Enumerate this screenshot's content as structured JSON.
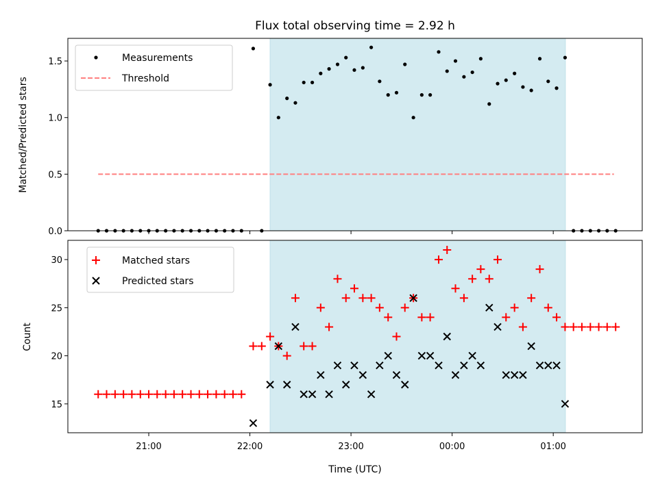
{
  "chart_data": {
    "title": "Flux total observing time = 2.92 h",
    "xlabel": "Time (UTC)",
    "x_tick_labels": [
      "21:00",
      "22:00",
      "23:00",
      "00:00",
      "01:00"
    ],
    "x_tick_hours": [
      21,
      22,
      23,
      24,
      25
    ],
    "x_range_hours": [
      20.2,
      25.88
    ],
    "shaded_region_hours": [
      22.2,
      25.12
    ],
    "shade_color": "#d4ebf1",
    "panels": [
      {
        "type": "scatter",
        "ylabel": "Matched/Predicted stars",
        "ylim": [
          0,
          1.7
        ],
        "yticks": [
          0.0,
          0.5,
          1.0,
          1.5
        ],
        "ytick_labels": [
          "0.0",
          "0.5",
          "1.0",
          "1.5"
        ],
        "legend_position": "top-left",
        "threshold": {
          "name": "Threshold",
          "value": 0.5,
          "x_range_hours": [
            20.5,
            25.6
          ],
          "color": "#ff7f7f"
        },
        "series": [
          {
            "name": "Measurements",
            "marker": "dot",
            "color": "#000000",
            "points": [
              [
                20.5,
                0
              ],
              [
                20.583,
                0
              ],
              [
                20.667,
                0
              ],
              [
                20.75,
                0
              ],
              [
                20.833,
                0
              ],
              [
                20.917,
                0
              ],
              [
                21.0,
                0
              ],
              [
                21.083,
                0
              ],
              [
                21.167,
                0
              ],
              [
                21.25,
                0
              ],
              [
                21.333,
                0
              ],
              [
                21.417,
                0
              ],
              [
                21.5,
                0
              ],
              [
                21.583,
                0
              ],
              [
                21.667,
                0
              ],
              [
                21.75,
                0
              ],
              [
                21.833,
                0
              ],
              [
                21.917,
                0
              ],
              [
                22.033,
                1.61
              ],
              [
                22.117,
                0
              ],
              [
                22.2,
                1.29
              ],
              [
                22.283,
                1.0
              ],
              [
                22.367,
                1.17
              ],
              [
                22.45,
                1.13
              ],
              [
                22.533,
                1.31
              ],
              [
                22.617,
                1.31
              ],
              [
                22.7,
                1.39
              ],
              [
                22.783,
                1.43
              ],
              [
                22.867,
                1.47
              ],
              [
                22.95,
                1.53
              ],
              [
                23.033,
                1.42
              ],
              [
                23.117,
                1.44
              ],
              [
                23.2,
                1.62
              ],
              [
                23.283,
                1.32
              ],
              [
                23.367,
                1.2
              ],
              [
                23.45,
                1.22
              ],
              [
                23.533,
                1.47
              ],
              [
                23.617,
                1.0
              ],
              [
                23.7,
                1.2
              ],
              [
                23.783,
                1.2
              ],
              [
                23.867,
                1.58
              ],
              [
                23.95,
                1.41
              ],
              [
                24.033,
                1.5
              ],
              [
                24.117,
                1.36
              ],
              [
                24.2,
                1.4
              ],
              [
                24.283,
                1.52
              ],
              [
                24.367,
                1.12
              ],
              [
                24.45,
                1.3
              ],
              [
                24.533,
                1.33
              ],
              [
                24.617,
                1.39
              ],
              [
                24.7,
                1.27
              ],
              [
                24.783,
                1.24
              ],
              [
                24.867,
                1.52
              ],
              [
                24.95,
                1.32
              ],
              [
                25.033,
                1.26
              ],
              [
                25.117,
                1.53
              ],
              [
                25.2,
                0
              ],
              [
                25.283,
                0
              ],
              [
                25.367,
                0
              ],
              [
                25.45,
                0
              ],
              [
                25.533,
                0
              ],
              [
                25.617,
                0
              ]
            ]
          }
        ]
      },
      {
        "type": "scatter",
        "ylabel": "Count",
        "ylim": [
          12,
          32
        ],
        "yticks": [
          15,
          20,
          25,
          30
        ],
        "ytick_labels": [
          "15",
          "20",
          "25",
          "30"
        ],
        "legend_position": "top-left",
        "series": [
          {
            "name": "Matched stars",
            "marker": "plus",
            "color": "#ff0000",
            "points": [
              [
                20.5,
                16
              ],
              [
                20.583,
                16
              ],
              [
                20.667,
                16
              ],
              [
                20.75,
                16
              ],
              [
                20.833,
                16
              ],
              [
                20.917,
                16
              ],
              [
                21.0,
                16
              ],
              [
                21.083,
                16
              ],
              [
                21.167,
                16
              ],
              [
                21.25,
                16
              ],
              [
                21.333,
                16
              ],
              [
                21.417,
                16
              ],
              [
                21.5,
                16
              ],
              [
                21.583,
                16
              ],
              [
                21.667,
                16
              ],
              [
                21.75,
                16
              ],
              [
                21.833,
                16
              ],
              [
                21.917,
                16
              ],
              [
                22.033,
                21
              ],
              [
                22.117,
                21
              ],
              [
                22.2,
                22
              ],
              [
                22.283,
                21
              ],
              [
                22.367,
                20
              ],
              [
                22.45,
                26
              ],
              [
                22.533,
                21
              ],
              [
                22.617,
                21
              ],
              [
                22.7,
                25
              ],
              [
                22.783,
                23
              ],
              [
                22.867,
                28
              ],
              [
                22.95,
                26
              ],
              [
                23.033,
                27
              ],
              [
                23.117,
                26
              ],
              [
                23.2,
                26
              ],
              [
                23.283,
                25
              ],
              [
                23.367,
                24
              ],
              [
                23.45,
                22
              ],
              [
                23.533,
                25
              ],
              [
                23.617,
                26
              ],
              [
                23.7,
                24
              ],
              [
                23.783,
                24
              ],
              [
                23.867,
                30
              ],
              [
                23.95,
                31
              ],
              [
                24.033,
                27
              ],
              [
                24.117,
                26
              ],
              [
                24.2,
                28
              ],
              [
                24.283,
                29
              ],
              [
                24.367,
                28
              ],
              [
                24.45,
                30
              ],
              [
                24.533,
                24
              ],
              [
                24.617,
                25
              ],
              [
                24.7,
                23
              ],
              [
                24.783,
                26
              ],
              [
                24.867,
                29
              ],
              [
                24.95,
                25
              ],
              [
                25.033,
                24
              ],
              [
                25.117,
                23
              ],
              [
                25.2,
                23
              ],
              [
                25.283,
                23
              ],
              [
                25.367,
                23
              ],
              [
                25.45,
                23
              ],
              [
                25.533,
                23
              ],
              [
                25.617,
                23
              ]
            ]
          },
          {
            "name": "Predicted stars",
            "marker": "x",
            "color": "#000000",
            "points": [
              [
                22.033,
                13
              ],
              [
                22.2,
                17
              ],
              [
                22.283,
                21
              ],
              [
                22.367,
                17
              ],
              [
                22.45,
                23
              ],
              [
                22.533,
                16
              ],
              [
                22.617,
                16
              ],
              [
                22.7,
                18
              ],
              [
                22.783,
                16
              ],
              [
                22.867,
                19
              ],
              [
                22.95,
                17
              ],
              [
                23.033,
                19
              ],
              [
                23.117,
                18
              ],
              [
                23.2,
                16
              ],
              [
                23.283,
                19
              ],
              [
                23.367,
                20
              ],
              [
                23.45,
                18
              ],
              [
                23.533,
                17
              ],
              [
                23.617,
                26
              ],
              [
                23.7,
                20
              ],
              [
                23.783,
                20
              ],
              [
                23.867,
                19
              ],
              [
                23.95,
                22
              ],
              [
                24.033,
                18
              ],
              [
                24.117,
                19
              ],
              [
                24.2,
                20
              ],
              [
                24.283,
                19
              ],
              [
                24.367,
                25
              ],
              [
                24.45,
                23
              ],
              [
                24.533,
                18
              ],
              [
                24.617,
                18
              ],
              [
                24.7,
                18
              ],
              [
                24.783,
                21
              ],
              [
                24.867,
                19
              ],
              [
                24.95,
                19
              ],
              [
                25.033,
                19
              ],
              [
                25.117,
                15
              ]
            ]
          }
        ]
      }
    ]
  }
}
